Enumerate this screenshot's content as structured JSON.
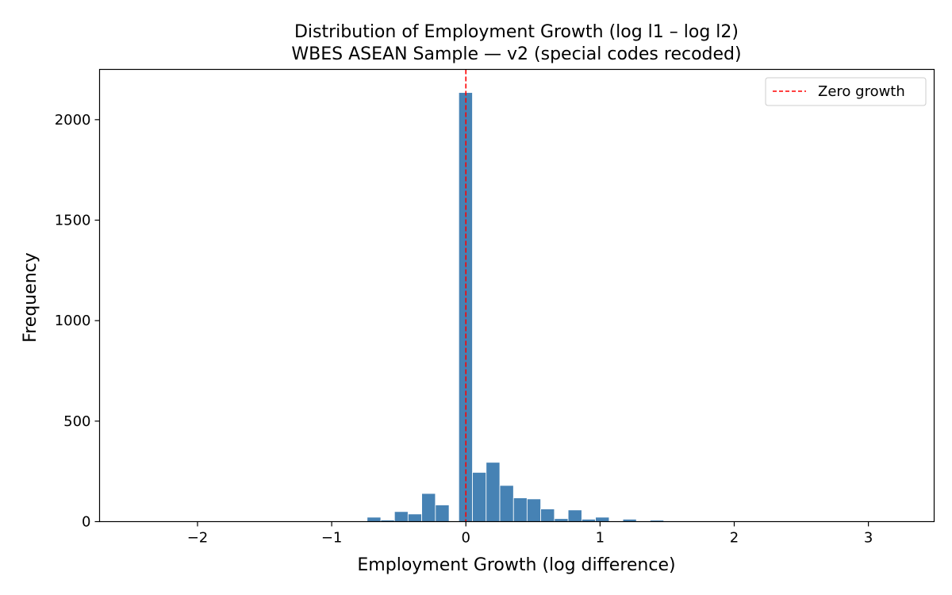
{
  "chart_data": {
    "type": "bar",
    "title": "Distribution of Employment Growth (log l1 – log l2)",
    "subtitle": "WBES ASEAN Sample — v2 (special codes recoded)",
    "xlabel": "Employment Growth (log difference)",
    "ylabel": "Frequency",
    "xlim": [
      -2.73,
      3.49
    ],
    "ylim": [
      0,
      2250
    ],
    "x_ticks": [
      {
        "value": -2,
        "label": "−2"
      },
      {
        "value": -1,
        "label": "−1"
      },
      {
        "value": 0,
        "label": "0"
      },
      {
        "value": 1,
        "label": "1"
      },
      {
        "value": 2,
        "label": "2"
      },
      {
        "value": 3,
        "label": "3"
      }
    ],
    "y_ticks": [
      {
        "value": 0,
        "label": "0"
      },
      {
        "value": 500,
        "label": "500"
      },
      {
        "value": 1000,
        "label": "1000"
      },
      {
        "value": 1500,
        "label": "1500"
      },
      {
        "value": 2000,
        "label": "2000"
      }
    ],
    "grid": false,
    "bar_color": "#4682b4",
    "bins": [
      {
        "x0": -0.736,
        "x1": -0.634,
        "count": 22
      },
      {
        "x0": -0.634,
        "x1": -0.532,
        "count": 8
      },
      {
        "x0": -0.532,
        "x1": -0.431,
        "count": 50
      },
      {
        "x0": -0.431,
        "x1": -0.329,
        "count": 38
      },
      {
        "x0": -0.329,
        "x1": -0.227,
        "count": 140
      },
      {
        "x0": -0.227,
        "x1": -0.125,
        "count": 83
      },
      {
        "x0": -0.053,
        "x1": 0.049,
        "count": 2135
      },
      {
        "x0": 0.049,
        "x1": 0.151,
        "count": 245
      },
      {
        "x0": 0.151,
        "x1": 0.253,
        "count": 295
      },
      {
        "x0": 0.253,
        "x1": 0.355,
        "count": 180
      },
      {
        "x0": 0.355,
        "x1": 0.456,
        "count": 118
      },
      {
        "x0": 0.456,
        "x1": 0.558,
        "count": 113
      },
      {
        "x0": 0.558,
        "x1": 0.66,
        "count": 63
      },
      {
        "x0": 0.66,
        "x1": 0.762,
        "count": 15
      },
      {
        "x0": 0.762,
        "x1": 0.864,
        "count": 58
      },
      {
        "x0": 0.864,
        "x1": 0.966,
        "count": 12
      },
      {
        "x0": 0.966,
        "x1": 1.068,
        "count": 22
      },
      {
        "x0": 1.068,
        "x1": 1.17,
        "count": 3
      },
      {
        "x0": 1.17,
        "x1": 1.271,
        "count": 12
      },
      {
        "x0": 1.271,
        "x1": 1.373,
        "count": 2
      },
      {
        "x0": 1.373,
        "x1": 1.475,
        "count": 7
      },
      {
        "x0": 1.475,
        "x1": 1.577,
        "count": 2
      },
      {
        "x0": 1.577,
        "x1": 1.679,
        "count": 1
      },
      {
        "x0": 1.679,
        "x1": 1.781,
        "count": 1
      }
    ],
    "reference_line": {
      "x": 0,
      "color": "#ff0000",
      "style": "dashed",
      "label": "Zero growth"
    },
    "legend": {
      "position": "top-right",
      "entries": [
        "Zero growth"
      ]
    }
  }
}
